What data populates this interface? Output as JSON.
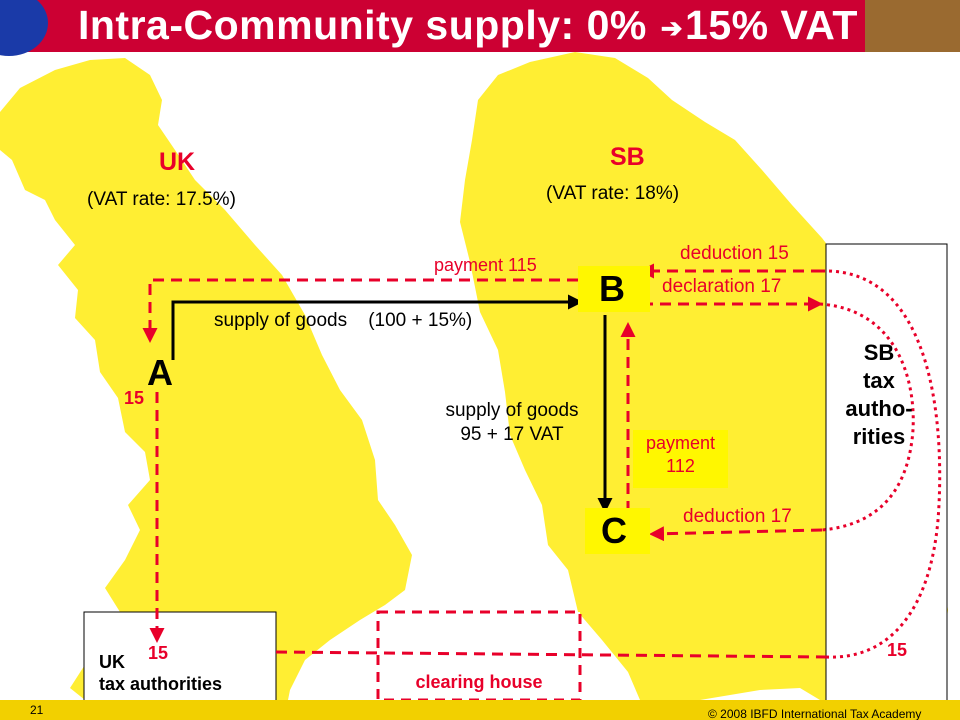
{
  "title": {
    "part1": "Intra-Community supply: 0%",
    "arrow": "➔",
    "part2": "15% VAT"
  },
  "countries": {
    "uk": {
      "name": "UK",
      "rate": "(VAT rate: 17.5%)"
    },
    "sb": {
      "name": "SB",
      "rate": "(VAT rate: 18%)"
    }
  },
  "parties": {
    "a": "A",
    "b": "B",
    "c": "C"
  },
  "flows": {
    "supply_ab": "supply of goods    (100 + 15%)",
    "payment_115": "payment 115",
    "deduction_15": "deduction 15",
    "declaration_17": "declaration 17",
    "supply_bc_line1": "supply of goods",
    "supply_bc_line2": "95 + 17 VAT",
    "payment_112_line1": "payment",
    "payment_112_line2": "112",
    "deduction_17": "deduction 17",
    "a_15": "15",
    "uk_tax_15": "15",
    "sb_15": "15"
  },
  "authorities": {
    "uk": {
      "line1": "UK",
      "line2": "tax authorities"
    },
    "sb": {
      "line1": "SB",
      "line2": "tax",
      "line3": "autho-",
      "line4": "rities"
    }
  },
  "clearing_house": "clearing house",
  "footer": {
    "page_number": "21",
    "copyright": "© 2008 IBFD International Tax Academy"
  },
  "colors": {
    "title_bg": "#cc0033",
    "accent_red": "#e8002a",
    "map_yellow": "#ffee33",
    "label_yellow": "#fff700"
  }
}
